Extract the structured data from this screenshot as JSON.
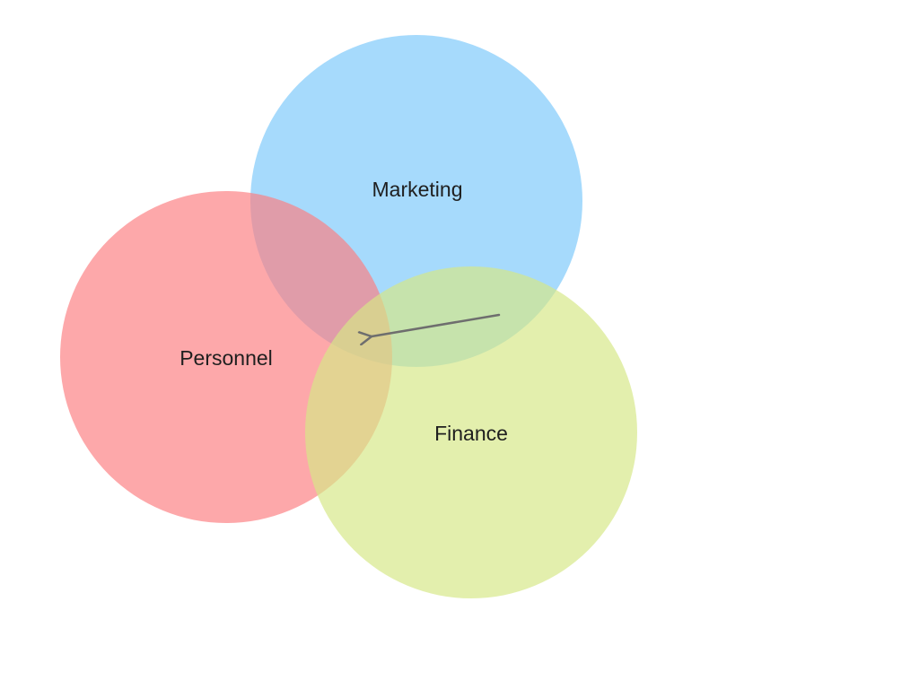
{
  "diagram": {
    "type": "venn",
    "sets": [
      {
        "id": "marketing",
        "label": "Marketing",
        "color": "#7cc8fb"
      },
      {
        "id": "personnel",
        "label": "Personnel",
        "color": "#fc7f82"
      },
      {
        "id": "finance",
        "label": "Finance",
        "color": "#d5e886"
      }
    ],
    "annotations": [
      {
        "type": "arrow",
        "color": "#6e6e6e",
        "from": "marketing-finance overlap",
        "to": "personnel-marketing-finance intersection"
      }
    ]
  }
}
